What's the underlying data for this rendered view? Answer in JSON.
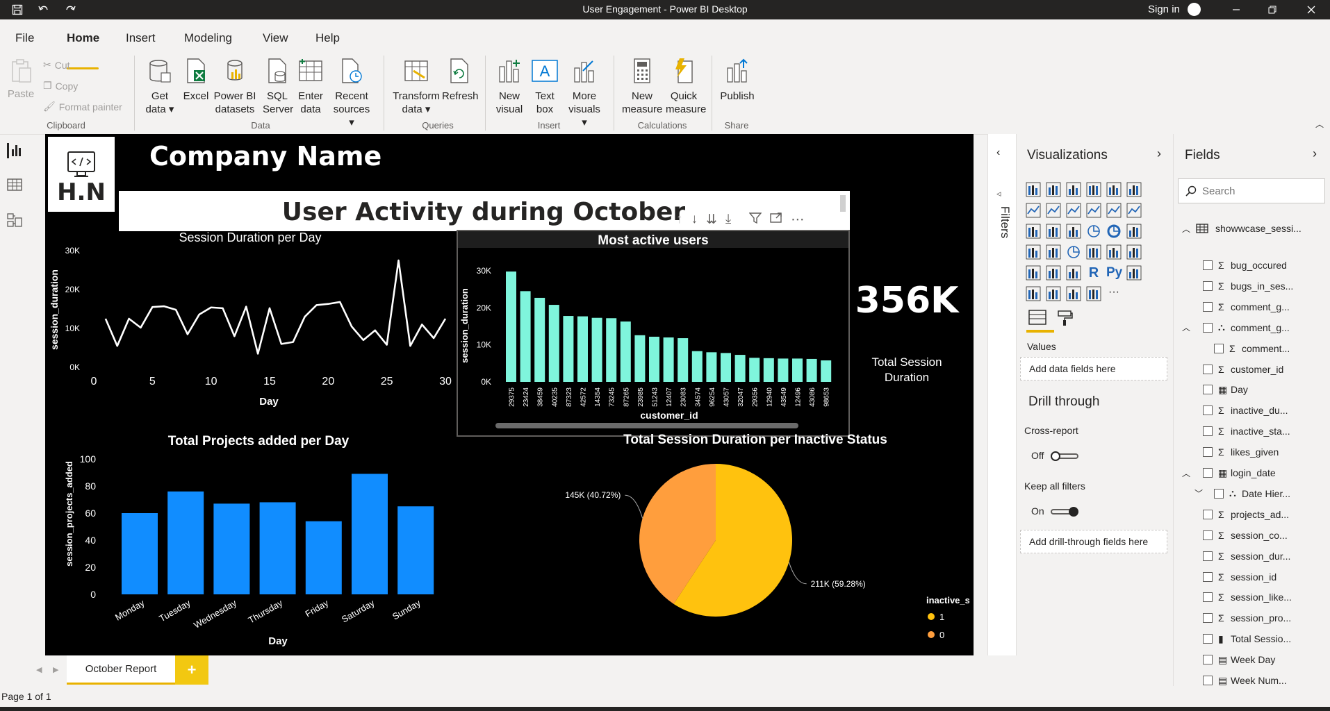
{
  "window": {
    "title": "User Engagement - Power BI Desktop",
    "signin": "Sign in"
  },
  "menu_tabs": [
    "File",
    "Home",
    "Insert",
    "Modeling",
    "View",
    "Help"
  ],
  "ribbon": {
    "clipboard": {
      "paste": "Paste",
      "cut": "Cut",
      "copy": "Copy",
      "format_painter": "Format painter",
      "label": "Clipboard"
    },
    "data": {
      "get_data": [
        "Get",
        "data"
      ],
      "excel": [
        "Excel"
      ],
      "pbi": [
        "Power BI",
        "datasets"
      ],
      "sql": [
        "SQL",
        "Server"
      ],
      "enter": [
        "Enter",
        "data"
      ],
      "recent": [
        "Recent",
        "sources"
      ],
      "label": "Data"
    },
    "queries": {
      "transform": [
        "Transform",
        "data"
      ],
      "refresh": [
        "Refresh"
      ],
      "label": "Queries"
    },
    "insert": {
      "new_visual": [
        "New",
        "visual"
      ],
      "text_box": [
        "Text",
        "box"
      ],
      "more_visuals": [
        "More",
        "visuals"
      ],
      "label": "Insert"
    },
    "calculations": {
      "new_measure": [
        "New",
        "measure"
      ],
      "quick_measure": [
        "Quick",
        "measure"
      ],
      "label": "Calculations"
    },
    "share": {
      "publish": [
        "Publish"
      ],
      "label": "Share"
    }
  },
  "report": {
    "company": "Company Name",
    "logo_text": "H.N",
    "heading": "User Activity during October",
    "kpi_value": "356K",
    "kpi_label": [
      "Total Session",
      "Duration"
    ]
  },
  "chart_data": [
    {
      "type": "line",
      "title": "Session Duration per Day",
      "xlabel": "Day",
      "ylabel": "session_duration",
      "xlim": [
        0,
        30
      ],
      "ylim": [
        0,
        30000
      ],
      "x_ticks": [
        "0",
        "5",
        "10",
        "15",
        "20",
        "25",
        "30"
      ],
      "y_ticks": [
        "0K",
        "10K",
        "20K",
        "30K"
      ],
      "x": [
        1,
        2,
        3,
        4,
        5,
        6,
        7,
        8,
        9,
        10,
        11,
        12,
        13,
        14,
        15,
        16,
        17,
        18,
        19,
        20,
        21,
        22,
        23,
        24,
        25,
        26,
        27,
        28,
        29,
        30
      ],
      "values": [
        12500,
        5500,
        12500,
        10200,
        15500,
        15700,
        14800,
        8500,
        13600,
        15400,
        15200,
        8000,
        15600,
        3500,
        15200,
        6000,
        6500,
        13000,
        16000,
        16300,
        16800,
        10500,
        7000,
        9500,
        5800,
        27500,
        5500,
        11000,
        7500,
        12500
      ]
    },
    {
      "type": "bar",
      "title": "Most active users",
      "xlabel": "customer_id",
      "ylabel": "session_duration",
      "ylim": [
        0,
        30000
      ],
      "y_ticks": [
        "0K",
        "10K",
        "20K",
        "30K"
      ],
      "categories": [
        "29375",
        "23424",
        "38459",
        "40235",
        "87323",
        "42572",
        "14354",
        "73245",
        "87265",
        "23985",
        "51243",
        "12407",
        "23083",
        "34574",
        "96254",
        "43057",
        "32047",
        "29356",
        "12940",
        "43549",
        "12496",
        "43086",
        "98653"
      ],
      "values": [
        29800,
        24500,
        22700,
        20800,
        17800,
        17700,
        17300,
        17200,
        16300,
        12600,
        12200,
        12000,
        11800,
        8300,
        8000,
        7800,
        7300,
        6500,
        6400,
        6300,
        6300,
        6200,
        5800
      ]
    },
    {
      "type": "bar",
      "title": "Total Projects added per Day",
      "xlabel": "Day",
      "ylabel": "session_projects_added",
      "ylim": [
        0,
        100
      ],
      "y_ticks": [
        "0",
        "20",
        "40",
        "60",
        "80",
        "100"
      ],
      "categories": [
        "Monday",
        "Tuesday",
        "Wednesday",
        "Thursday",
        "Friday",
        "Saturday",
        "Sunday"
      ],
      "values": [
        60,
        76,
        67,
        68,
        54,
        89,
        65
      ]
    },
    {
      "type": "pie",
      "title": "Total Session Duration per Inactive Status",
      "legend_title": "inactive_status",
      "legend_position": "right",
      "slices": [
        {
          "name": "1",
          "value": 211,
          "label": "211K (59.28%)",
          "color": "#ffc20e"
        },
        {
          "name": "0",
          "value": 145,
          "label": "145K (40.72%)",
          "color": "#ff9e3d"
        }
      ]
    }
  ],
  "colors": {
    "line": "#ffffff",
    "users_bar": "#7ff5dc",
    "projects_bar": "#118dff",
    "accent": "#e8b200"
  },
  "filters_label": "Filters",
  "visualizations": {
    "title": "Visualizations",
    "values_label": "Values",
    "values_well": "Add data fields here",
    "drill_through": "Drill through",
    "cross_report": "Cross-report",
    "cross_report_state": "Off",
    "keep_filters": "Keep all filters",
    "keep_filters_state": "On",
    "drill_well": "Add drill-through fields here",
    "r_label": "R",
    "py_label": "Py",
    "more": "···"
  },
  "fields": {
    "title": "Fields",
    "search_placeholder": "Search",
    "table": "showwcase_sessi...",
    "items": [
      {
        "icon": "Σ",
        "label": "bug_occured",
        "indent": 0
      },
      {
        "icon": "Σ",
        "label": "bugs_in_ses...",
        "indent": 0
      },
      {
        "icon": "Σ",
        "label": "comment_g...",
        "indent": 0
      },
      {
        "icon": "hier",
        "label": "comment_g...",
        "indent": 0,
        "expand": true
      },
      {
        "icon": "Σ",
        "label": "comment...",
        "indent": 1
      },
      {
        "icon": "Σ",
        "label": "customer_id",
        "indent": 0
      },
      {
        "icon": "cal",
        "label": "Day",
        "indent": 0
      },
      {
        "icon": "Σ",
        "label": "inactive_du...",
        "indent": 0
      },
      {
        "icon": "Σ",
        "label": "inactive_sta...",
        "indent": 0
      },
      {
        "icon": "Σ",
        "label": "likes_given",
        "indent": 0
      },
      {
        "icon": "cal",
        "label": "login_date",
        "indent": 0,
        "expand": true
      },
      {
        "icon": "hier",
        "label": "Date Hier...",
        "indent": 1,
        "expand2": true
      },
      {
        "icon": "Σ",
        "label": "projects_ad...",
        "indent": 0
      },
      {
        "icon": "Σ",
        "label": "session_co...",
        "indent": 0
      },
      {
        "icon": "Σ",
        "label": "session_dur...",
        "indent": 0
      },
      {
        "icon": "Σ",
        "label": "session_id",
        "indent": 0
      },
      {
        "icon": "Σ",
        "label": "session_like...",
        "indent": 0
      },
      {
        "icon": "Σ",
        "label": "session_pro...",
        "indent": 0
      },
      {
        "icon": "calc",
        "label": "Total Sessio...",
        "indent": 0
      },
      {
        "icon": "tbl",
        "label": "Week Day",
        "indent": 0
      },
      {
        "icon": "tbl",
        "label": "Week Num...",
        "indent": 0
      }
    ]
  },
  "page_tab": "October Report",
  "add_page": "+",
  "status": "Page 1 of 1"
}
